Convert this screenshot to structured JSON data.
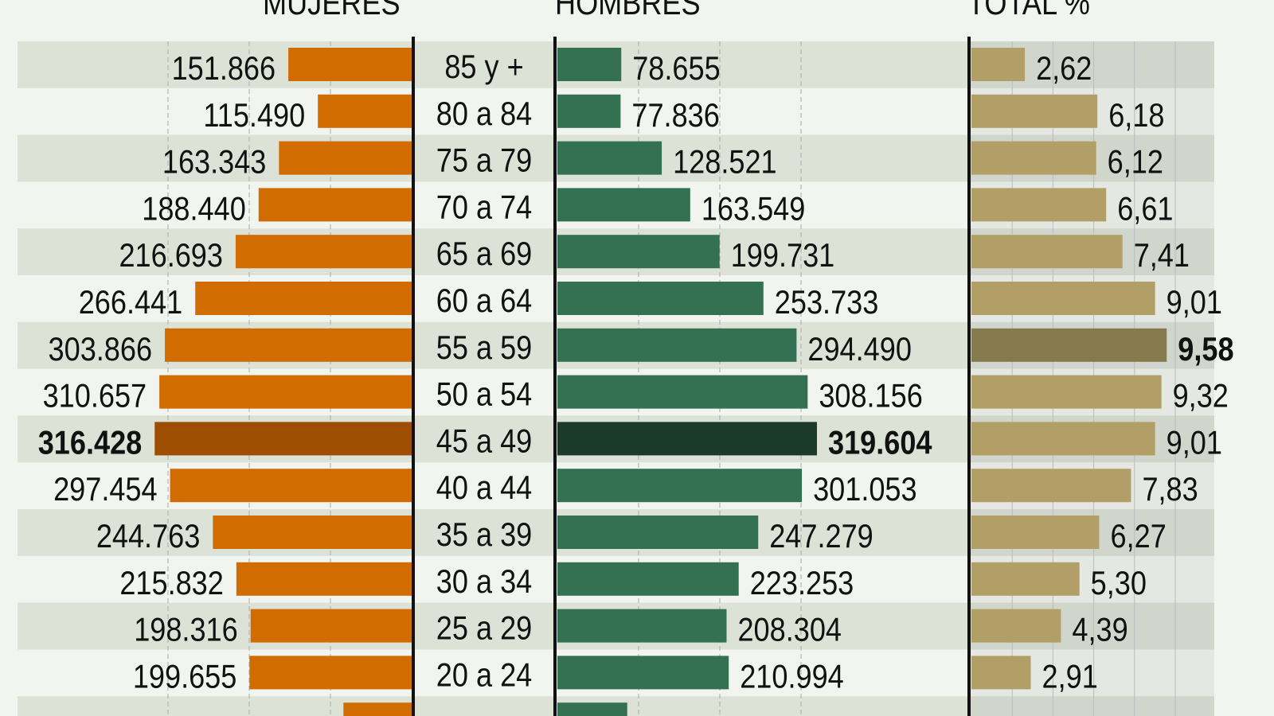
{
  "chart_data": {
    "type": "bar",
    "orientation": "horizontal",
    "layout": "population-pyramid",
    "headers": {
      "women": "MUJERES",
      "men": "HOMBRES",
      "total": "TOTAL %"
    },
    "categories": [
      "85 y +",
      "80 a 84",
      "75 a 79",
      "70 a 74",
      "65 a 69",
      "60 a 64",
      "55 a 59",
      "50 a 54",
      "45 a 49",
      "40 a 44",
      "35 a 39",
      "30 a 34",
      "25 a 29",
      "20 a 24",
      ""
    ],
    "women": [
      151866,
      115490,
      163343,
      188440,
      216693,
      266441,
      303866,
      310657,
      316428,
      297454,
      244763,
      215832,
      198316,
      199655,
      84000
    ],
    "women_labels": [
      "151.866",
      "115.490",
      "163.343",
      "188.440",
      "216.693",
      "266.441",
      "303.866",
      "310.657",
      "316.428",
      "297.454",
      "244.763",
      "215.832",
      "198.316",
      "199.655",
      ""
    ],
    "men": [
      78655,
      77836,
      128521,
      163549,
      199731,
      253733,
      294490,
      308156,
      319604,
      301053,
      247279,
      223253,
      208304,
      210994,
      86000
    ],
    "men_labels": [
      "78.655",
      "77.836",
      "128.521",
      "163.549",
      "199.731",
      "253.733",
      "294.490",
      "308.156",
      "319.604",
      "301.053",
      "247.279",
      "223.253",
      "208.304",
      "210.994",
      ""
    ],
    "total_pct": [
      2.62,
      6.18,
      6.12,
      6.61,
      7.41,
      9.01,
      9.58,
      9.32,
      9.01,
      7.83,
      6.27,
      5.3,
      4.39,
      2.91,
      null
    ],
    "total_labels": [
      "2,62",
      "6,18",
      "6,12",
      "6,61",
      "7,41",
      "9,01",
      "9,58",
      "9,32",
      "9,01",
      "7,83",
      "6,27",
      "5,30",
      "4,39",
      "2,91",
      ""
    ],
    "highlight": {
      "women_max_index": 8,
      "men_max_index": 8,
      "total_max_index": 6
    },
    "grid": true,
    "women_men_gridline_step": 100000,
    "total_gridline_step": 2,
    "colors": {
      "women": "#d06c00",
      "women_highlight": "#9e4e00",
      "men": "#347152",
      "men_highlight": "#1c3a28",
      "total": "#b19f67",
      "total_highlight": "#857a4d",
      "row_band": "#dce2d6",
      "background": "#f1f4ef"
    }
  }
}
